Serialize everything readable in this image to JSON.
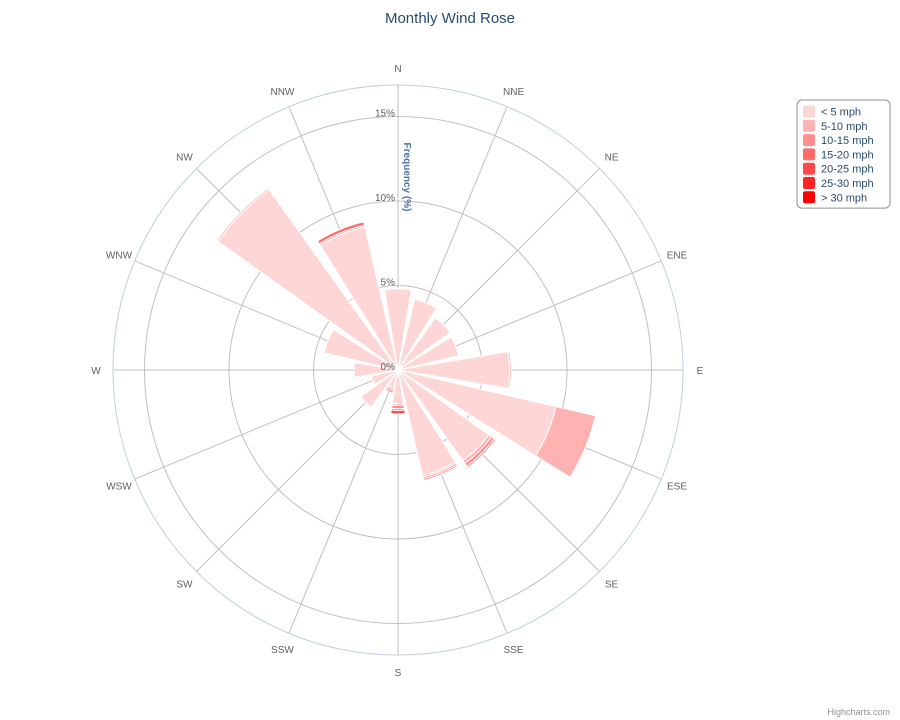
{
  "chart_data": {
    "type": "bar",
    "polar": true,
    "title": "Monthly Wind Rose",
    "credits": "Highcharts.com",
    "categories": [
      "N",
      "NNE",
      "NE",
      "ENE",
      "E",
      "ESE",
      "SE",
      "SSE",
      "S",
      "SSW",
      "SW",
      "WSW",
      "W",
      "WNW",
      "NW",
      "NNW"
    ],
    "yAxis": {
      "title": "Frequency (%)",
      "ticks": [
        0,
        5,
        10,
        15
      ],
      "tick_labels": [
        "0%",
        "5%",
        "10%",
        "15%"
      ],
      "max": 17,
      "stacked": true
    },
    "legend": {
      "position": "top-right"
    },
    "series": [
      {
        "name": "< 5 mph",
        "color": "#ffd6d6",
        "values": [
          4.8,
          4.3,
          3.8,
          3.7,
          6.6,
          9.6,
          6.6,
          6.4,
          2.0,
          1.1,
          2.7,
          1.6,
          2.6,
          4.5,
          13.1,
          8.7
        ]
      },
      {
        "name": "5-10 mph",
        "color": "#ffb2b2",
        "values": [
          0.0,
          0.0,
          0.0,
          0.0,
          0.1,
          2.4,
          0.2,
          0.1,
          0.1,
          0.0,
          0.0,
          0.0,
          0.0,
          0.0,
          0.1,
          0.0
        ]
      },
      {
        "name": "10-15 mph",
        "color": "#ff8f8f",
        "values": [
          0.0,
          0.0,
          0.0,
          0.0,
          0.0,
          0.0,
          0.2,
          0.1,
          0.2,
          0.1,
          0.0,
          0.0,
          0.0,
          0.0,
          0.0,
          0.1
        ]
      },
      {
        "name": "15-20 mph",
        "color": "#ff6b6b",
        "values": [
          0.0,
          0.0,
          0.0,
          0.0,
          0.0,
          0.0,
          0.1,
          0.1,
          0.1,
          0.1,
          0.0,
          0.0,
          0.0,
          0.0,
          0.0,
          0.2
        ]
      },
      {
        "name": "20-25 mph",
        "color": "#ff4848",
        "values": [
          0.0,
          0.0,
          0.0,
          0.0,
          0.0,
          0.0,
          0.0,
          0.0,
          0.2,
          0.1,
          0.0,
          0.0,
          0.0,
          0.0,
          0.0,
          0.0
        ]
      },
      {
        "name": "25-30 mph",
        "color": "#ff2424",
        "values": [
          0.0,
          0.0,
          0.0,
          0.0,
          0.0,
          0.0,
          0.0,
          0.0,
          0.0,
          0.0,
          0.0,
          0.0,
          0.0,
          0.0,
          0.0,
          0.0
        ]
      },
      {
        "name": "> 30 mph",
        "color": "#ff0000",
        "values": [
          0.0,
          0.0,
          0.0,
          0.0,
          0.0,
          0.0,
          0.0,
          0.0,
          0.0,
          0.0,
          0.0,
          0.0,
          0.0,
          0.0,
          0.0,
          0.0
        ]
      }
    ]
  }
}
